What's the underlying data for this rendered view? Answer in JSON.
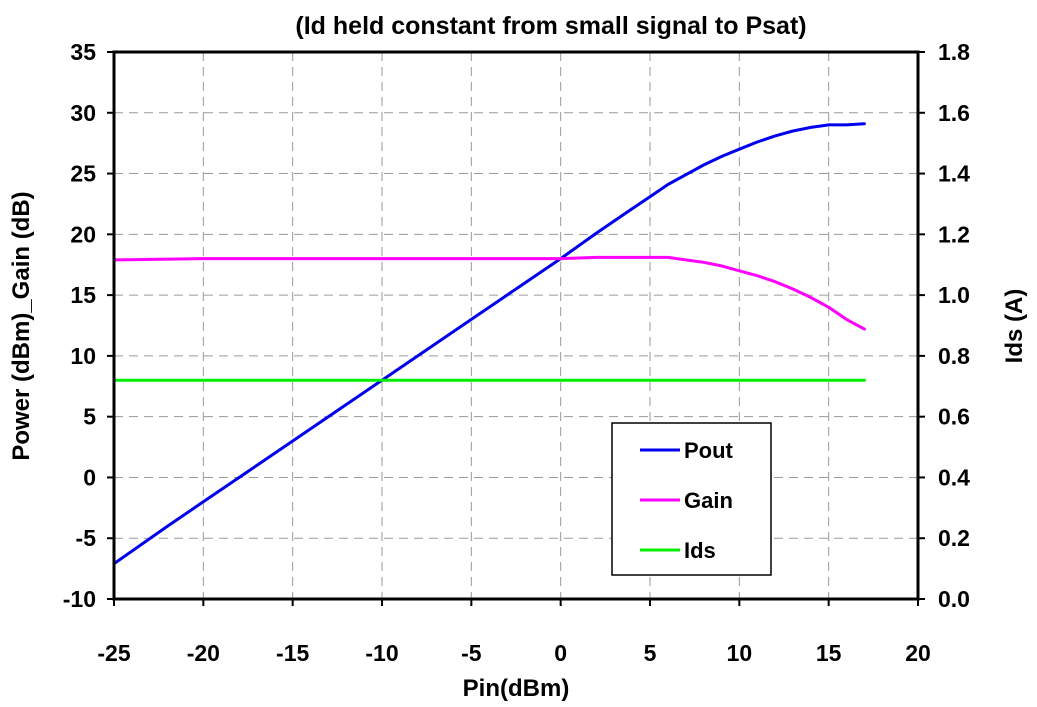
{
  "chart_data": {
    "type": "line",
    "title": "(Id held constant from small signal to Psat)",
    "xlabel": "Pin(dBm)",
    "ylabel": "Power (dBm)_Gain (dB)",
    "y2label": "Ids (A)",
    "xlim": [
      -25,
      20
    ],
    "ylim": [
      -10,
      35
    ],
    "y2lim": [
      0.0,
      1.8
    ],
    "xticks": [
      "-25",
      "-20",
      "-15",
      "-10",
      "-5",
      "0",
      "5",
      "10",
      "15",
      "20"
    ],
    "yticks": [
      "-10",
      "-5",
      "0",
      "5",
      "10",
      "15",
      "20",
      "25",
      "30",
      "35"
    ],
    "y2ticks": [
      "0.0",
      "0.2",
      "0.4",
      "0.6",
      "0.8",
      "1.0",
      "1.2",
      "1.4",
      "1.6",
      "1.8"
    ],
    "grid": true,
    "legend_position": "bottom-right",
    "series": [
      {
        "name": "Pout",
        "axis": "left",
        "color": "#0000ee",
        "x": [
          -25,
          -22,
          -20,
          -15,
          -10,
          -5,
          0,
          2,
          4,
          5,
          6,
          7,
          8,
          9,
          10,
          11,
          12,
          13,
          14,
          15,
          16,
          17
        ],
        "y": [
          -7.1,
          -4.0,
          -2.0,
          3.0,
          8.0,
          13.0,
          18.0,
          20.1,
          22.1,
          23.1,
          24.1,
          24.9,
          25.7,
          26.4,
          27.0,
          27.6,
          28.1,
          28.5,
          28.8,
          29.0,
          29.0,
          29.1
        ]
      },
      {
        "name": "Gain",
        "axis": "left",
        "color": "#ff00ff",
        "x": [
          -25,
          -20,
          -15,
          -10,
          -5,
          0,
          2,
          4,
          5,
          6,
          7,
          8,
          9,
          10,
          11,
          12,
          13,
          14,
          15,
          16,
          17
        ],
        "y": [
          17.9,
          18.0,
          18.0,
          18.0,
          18.0,
          18.0,
          18.1,
          18.1,
          18.1,
          18.1,
          17.9,
          17.7,
          17.4,
          17.0,
          16.6,
          16.1,
          15.5,
          14.8,
          14.0,
          13.0,
          12.2
        ]
      },
      {
        "name": "Ids",
        "axis": "right",
        "color": "#00ee00",
        "x": [
          -25,
          -20,
          -15,
          -10,
          -5,
          0,
          5,
          10,
          15,
          17
        ],
        "y": [
          0.72,
          0.72,
          0.72,
          0.72,
          0.72,
          0.72,
          0.72,
          0.72,
          0.72,
          0.72
        ]
      }
    ]
  }
}
